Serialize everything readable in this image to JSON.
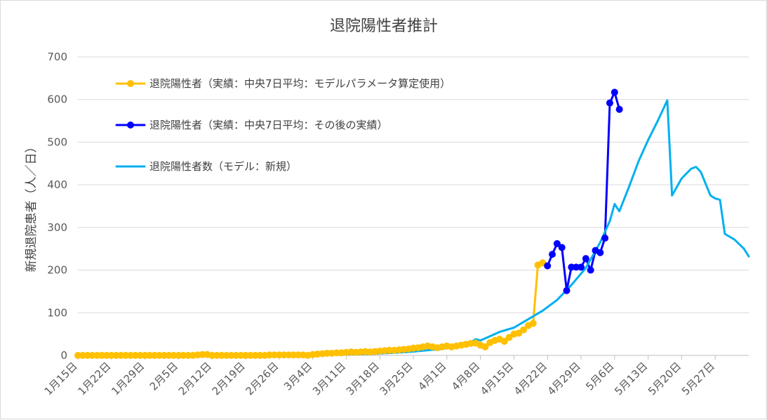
{
  "chart_data": {
    "type": "line",
    "title": "退院陽性者推計",
    "ylabel": "新規退院患者（人／日）",
    "xlabel": "",
    "ylim": [
      0,
      700
    ],
    "y_ticks": [
      "0",
      "100",
      "200",
      "300",
      "400",
      "500",
      "600",
      "700"
    ],
    "x_tick_labels": [
      "1月15日",
      "1月22日",
      "1月29日",
      "2月5日",
      "2月12日",
      "2月19日",
      "2月26日",
      "3月4日",
      "3月11日",
      "3月18日",
      "3月25日",
      "4月1日",
      "4月8日",
      "4月15日",
      "4月22日",
      "4月29日",
      "5月6日",
      "5月13日",
      "5月20日",
      "5月27日"
    ],
    "x_range": [
      "1月15日",
      "6月3日"
    ],
    "grid": "horizontal",
    "legend_position": "upper-left",
    "series": [
      {
        "name": "退院陽性者（実績：中央7日平均：モデルパラメータ算定使用）",
        "color": "#FFC000",
        "marker": "circle",
        "points": [
          {
            "x": "1月15日",
            "y": 0
          },
          {
            "x": "1月16日",
            "y": 0
          },
          {
            "x": "1月17日",
            "y": 0
          },
          {
            "x": "1月18日",
            "y": 0
          },
          {
            "x": "1月19日",
            "y": 0
          },
          {
            "x": "1月20日",
            "y": 0
          },
          {
            "x": "1月21日",
            "y": 0
          },
          {
            "x": "1月22日",
            "y": 0
          },
          {
            "x": "1月23日",
            "y": 0
          },
          {
            "x": "1月24日",
            "y": 0
          },
          {
            "x": "1月25日",
            "y": 0
          },
          {
            "x": "1月26日",
            "y": 0
          },
          {
            "x": "1月27日",
            "y": 0
          },
          {
            "x": "1月28日",
            "y": 0
          },
          {
            "x": "1月29日",
            "y": 0
          },
          {
            "x": "1月30日",
            "y": 0
          },
          {
            "x": "1月31日",
            "y": 0
          },
          {
            "x": "2月1日",
            "y": 0
          },
          {
            "x": "2月2日",
            "y": 0
          },
          {
            "x": "2月3日",
            "y": 0
          },
          {
            "x": "2月4日",
            "y": 0
          },
          {
            "x": "2月5日",
            "y": 0
          },
          {
            "x": "2月6日",
            "y": 0
          },
          {
            "x": "2月7日",
            "y": 0
          },
          {
            "x": "2月8日",
            "y": 0
          },
          {
            "x": "2月9日",
            "y": 1
          },
          {
            "x": "2月10日",
            "y": 2
          },
          {
            "x": "2月11日",
            "y": 2
          },
          {
            "x": "2月12日",
            "y": 0
          },
          {
            "x": "2月13日",
            "y": 0
          },
          {
            "x": "2月14日",
            "y": 0
          },
          {
            "x": "2月15日",
            "y": 0
          },
          {
            "x": "2月16日",
            "y": 0
          },
          {
            "x": "2月17日",
            "y": 0
          },
          {
            "x": "2月18日",
            "y": 0
          },
          {
            "x": "2月19日",
            "y": 0
          },
          {
            "x": "2月20日",
            "y": 0
          },
          {
            "x": "2月21日",
            "y": 0
          },
          {
            "x": "2月22日",
            "y": 0
          },
          {
            "x": "2月23日",
            "y": 0
          },
          {
            "x": "2月24日",
            "y": 1
          },
          {
            "x": "2月25日",
            "y": 1
          },
          {
            "x": "2月26日",
            "y": 1
          },
          {
            "x": "2月27日",
            "y": 1
          },
          {
            "x": "2月28日",
            "y": 1
          },
          {
            "x": "2月29日",
            "y": 1
          },
          {
            "x": "3月1日",
            "y": 1
          },
          {
            "x": "3月2日",
            "y": 1
          },
          {
            "x": "3月3日",
            "y": 0
          },
          {
            "x": "3月4日",
            "y": 2
          },
          {
            "x": "3月5日",
            "y": 3
          },
          {
            "x": "3月6日",
            "y": 4
          },
          {
            "x": "3月7日",
            "y": 5
          },
          {
            "x": "3月8日",
            "y": 5
          },
          {
            "x": "3月9日",
            "y": 6
          },
          {
            "x": "3月10日",
            "y": 6
          },
          {
            "x": "3月11日",
            "y": 7
          },
          {
            "x": "3月12日",
            "y": 8
          },
          {
            "x": "3月13日",
            "y": 7
          },
          {
            "x": "3月14日",
            "y": 8
          },
          {
            "x": "3月15日",
            "y": 9
          },
          {
            "x": "3月16日",
            "y": 8
          },
          {
            "x": "3月17日",
            "y": 9
          },
          {
            "x": "3月18日",
            "y": 10
          },
          {
            "x": "3月19日",
            "y": 11
          },
          {
            "x": "3月20日",
            "y": 12
          },
          {
            "x": "3月21日",
            "y": 12
          },
          {
            "x": "3月22日",
            "y": 13
          },
          {
            "x": "3月23日",
            "y": 14
          },
          {
            "x": "3月24日",
            "y": 15
          },
          {
            "x": "3月25日",
            "y": 17
          },
          {
            "x": "3月26日",
            "y": 18
          },
          {
            "x": "3月27日",
            "y": 20
          },
          {
            "x": "3月28日",
            "y": 22
          },
          {
            "x": "3月29日",
            "y": 20
          },
          {
            "x": "3月30日",
            "y": 18
          },
          {
            "x": "3月31日",
            "y": 20
          },
          {
            "x": "4月1日",
            "y": 22
          },
          {
            "x": "4月2日",
            "y": 20
          },
          {
            "x": "4月3日",
            "y": 22
          },
          {
            "x": "4月4日",
            "y": 24
          },
          {
            "x": "4月5日",
            "y": 26
          },
          {
            "x": "4月6日",
            "y": 28
          },
          {
            "x": "4月7日",
            "y": 29
          },
          {
            "x": "4月8日",
            "y": 24
          },
          {
            "x": "4月9日",
            "y": 20
          },
          {
            "x": "4月10日",
            "y": 30
          },
          {
            "x": "4月11日",
            "y": 35
          },
          {
            "x": "4月12日",
            "y": 38
          },
          {
            "x": "4月13日",
            "y": 33
          },
          {
            "x": "4月14日",
            "y": 42
          },
          {
            "x": "4月15日",
            "y": 50
          },
          {
            "x": "4月16日",
            "y": 52
          },
          {
            "x": "4月17日",
            "y": 60
          },
          {
            "x": "4月18日",
            "y": 70
          },
          {
            "x": "4月19日",
            "y": 75
          },
          {
            "x": "4月20日",
            "y": 212
          },
          {
            "x": "4月21日",
            "y": 217
          },
          {
            "x": "4月22日",
            "y": 210
          }
        ]
      },
      {
        "name": "退院陽性者（実績：中央7日平均：その後の実績）",
        "color": "#0000FF",
        "marker": "circle",
        "points": [
          {
            "x": "4月22日",
            "y": 210
          },
          {
            "x": "4月23日",
            "y": 237
          },
          {
            "x": "4月24日",
            "y": 262
          },
          {
            "x": "4月25日",
            "y": 253
          },
          {
            "x": "4月26日",
            "y": 152
          },
          {
            "x": "4月27日",
            "y": 207
          },
          {
            "x": "4月28日",
            "y": 207
          },
          {
            "x": "4月29日",
            "y": 207
          },
          {
            "x": "4月30日",
            "y": 227
          },
          {
            "x": "5月1日",
            "y": 200
          },
          {
            "x": "5月2日",
            "y": 246
          },
          {
            "x": "5月3日",
            "y": 241
          },
          {
            "x": "5月4日",
            "y": 275
          },
          {
            "x": "5月5日",
            "y": 592
          },
          {
            "x": "5月6日",
            "y": 617
          },
          {
            "x": "5月7日",
            "y": 577
          }
        ]
      },
      {
        "name": "退院陽性者数（モデル：新規）",
        "color": "#00B0F0",
        "marker": "none",
        "points": [
          {
            "x": "2月17日",
            "y": 0
          },
          {
            "x": "3月1日",
            "y": 1
          },
          {
            "x": "3月10日",
            "y": 2
          },
          {
            "x": "3月17日",
            "y": 4
          },
          {
            "x": "3月24日",
            "y": 8
          },
          {
            "x": "3月31日",
            "y": 15
          },
          {
            "x": "4月3日",
            "y": 22
          },
          {
            "x": "4月6日",
            "y": 30
          },
          {
            "x": "4月7日",
            "y": 38
          },
          {
            "x": "4月8日",
            "y": 35
          },
          {
            "x": "4月10日",
            "y": 45
          },
          {
            "x": "4月12日",
            "y": 55
          },
          {
            "x": "4月15日",
            "y": 65
          },
          {
            "x": "4月18日",
            "y": 85
          },
          {
            "x": "4月21日",
            "y": 105
          },
          {
            "x": "4月24日",
            "y": 130
          },
          {
            "x": "4月27日",
            "y": 165
          },
          {
            "x": "4月30日",
            "y": 205
          },
          {
            "x": "5月3日",
            "y": 265
          },
          {
            "x": "5月5日",
            "y": 315
          },
          {
            "x": "5月6日",
            "y": 355
          },
          {
            "x": "5月7日",
            "y": 338
          },
          {
            "x": "5月9日",
            "y": 395
          },
          {
            "x": "5月11日",
            "y": 455
          },
          {
            "x": "5月13日",
            "y": 505
          },
          {
            "x": "5月15日",
            "y": 550
          },
          {
            "x": "5月17日",
            "y": 598
          },
          {
            "x": "5月18日",
            "y": 375
          },
          {
            "x": "5月20日",
            "y": 415
          },
          {
            "x": "5月22日",
            "y": 438
          },
          {
            "x": "5月23日",
            "y": 442
          },
          {
            "x": "5月24日",
            "y": 430
          },
          {
            "x": "5月26日",
            "y": 375
          },
          {
            "x": "5月27日",
            "y": 368
          },
          {
            "x": "5月28日",
            "y": 365
          },
          {
            "x": "5月29日",
            "y": 285
          },
          {
            "x": "5月31日",
            "y": 272
          },
          {
            "x": "6月2日",
            "y": 250
          },
          {
            "x": "6月3日",
            "y": 232
          }
        ]
      }
    ]
  }
}
